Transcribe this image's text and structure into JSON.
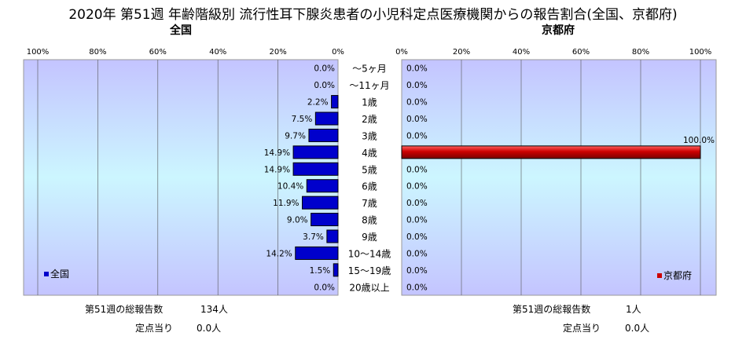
{
  "title": "2020年 第51週 年齢階級別 流行性耳下腺炎患者の小児科定点医療機関からの報告割合(全国、京都府)",
  "left_panel_title": "全国",
  "right_panel_title": "京都府",
  "colors": {
    "national": "#0000cc",
    "kyoto": "#cc0000"
  },
  "chart_data": [
    {
      "type": "bar",
      "orientation": "horizontal",
      "direction": "right-to-left",
      "title": "全国",
      "legend": {
        "position": "bottom-left",
        "entries": [
          "全国"
        ]
      },
      "xlim": [
        0,
        100
      ],
      "x_ticks": [
        "100%",
        "80%",
        "60%",
        "40%",
        "20%",
        "0%"
      ],
      "grid": true,
      "categories": [
        "～5ヶ月",
        "～11ヶ月",
        "1歳",
        "2歳",
        "3歳",
        "4歳",
        "5歳",
        "6歳",
        "7歳",
        "8歳",
        "9歳",
        "10～14歳",
        "15～19歳",
        "20歳以上"
      ],
      "series": [
        {
          "name": "全国",
          "values": [
            0.0,
            0.0,
            2.2,
            7.5,
            9.7,
            14.9,
            14.9,
            10.4,
            11.9,
            9.0,
            3.7,
            14.2,
            1.5,
            0.0
          ],
          "labels": [
            "0.0%",
            "0.0%",
            "2.2%",
            "7.5%",
            "9.7%",
            "14.9%",
            "14.9%",
            "10.4%",
            "11.9%",
            "9.0%",
            "3.7%",
            "14.2%",
            "1.5%",
            "0.0%"
          ]
        }
      ]
    },
    {
      "type": "bar",
      "orientation": "horizontal",
      "direction": "left-to-right",
      "title": "京都府",
      "legend": {
        "position": "bottom-right",
        "entries": [
          "京都府"
        ]
      },
      "xlim": [
        0,
        100
      ],
      "x_ticks": [
        "0%",
        "20%",
        "40%",
        "60%",
        "80%",
        "100%"
      ],
      "grid": true,
      "categories": [
        "～5ヶ月",
        "～11ヶ月",
        "1歳",
        "2歳",
        "3歳",
        "4歳",
        "5歳",
        "6歳",
        "7歳",
        "8歳",
        "9歳",
        "10～14歳",
        "15～19歳",
        "20歳以上"
      ],
      "series": [
        {
          "name": "京都府",
          "values": [
            0.0,
            0.0,
            0.0,
            0.0,
            0.0,
            100.0,
            0.0,
            0.0,
            0.0,
            0.0,
            0.0,
            0.0,
            0.0,
            0.0
          ],
          "labels": [
            "0.0%",
            "0.0%",
            "0.0%",
            "0.0%",
            "0.0%",
            "100.0%",
            "0.0%",
            "0.0%",
            "0.0%",
            "0.0%",
            "0.0%",
            "0.0%",
            "0.0%",
            "0.0%"
          ]
        }
      ]
    }
  ],
  "footer": {
    "national_total_label": "第51週の総報告数",
    "national_total_value": "134人",
    "national_per_label": "定点当り",
    "national_per_value": "0.0人",
    "kyoto_total_label": "第51週の総報告数",
    "kyoto_total_value": "1人",
    "kyoto_per_label": "定点当り",
    "kyoto_per_value": "0.0人"
  }
}
